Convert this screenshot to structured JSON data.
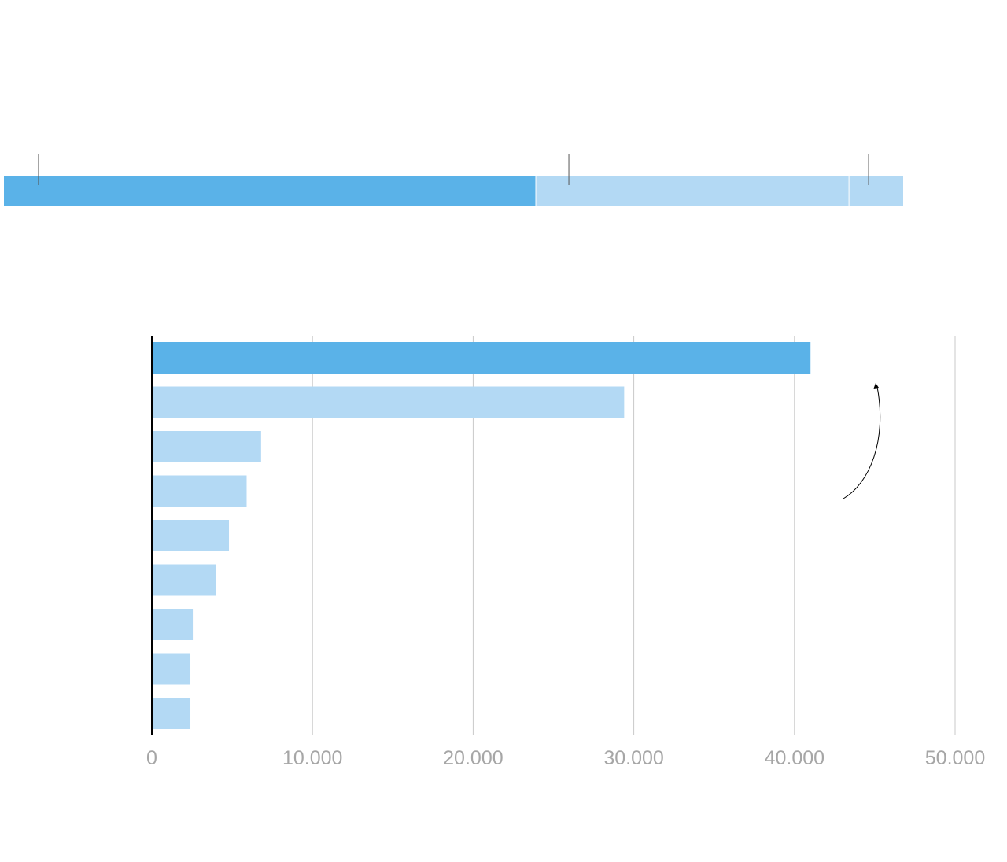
{
  "chart_data": [
    {
      "type": "bar",
      "orientation": "horizontal",
      "stacked": true,
      "segments": [
        {
          "value": 27700,
          "color": "#5ab2e8"
        },
        {
          "value": 16300,
          "color": "#b3d9f4"
        },
        {
          "value": 2800,
          "color": "#b3d9f4"
        }
      ],
      "markers": [
        1800,
        29400,
        45000
      ],
      "xlim": [
        0,
        50000
      ]
    },
    {
      "type": "bar",
      "orientation": "horizontal",
      "values": [
        41000,
        29400,
        6800,
        5900,
        4800,
        4000,
        2550,
        2400,
        2400
      ],
      "highlight_color": "#5ab2e8",
      "bar_color": "#b3d9f4",
      "xlim": [
        0,
        50000
      ],
      "xticks": [
        "0",
        "10.000",
        "20.000",
        "30.000",
        "40.000",
        "50.000"
      ],
      "grid": true,
      "annotation": "curved-arrow"
    }
  ]
}
